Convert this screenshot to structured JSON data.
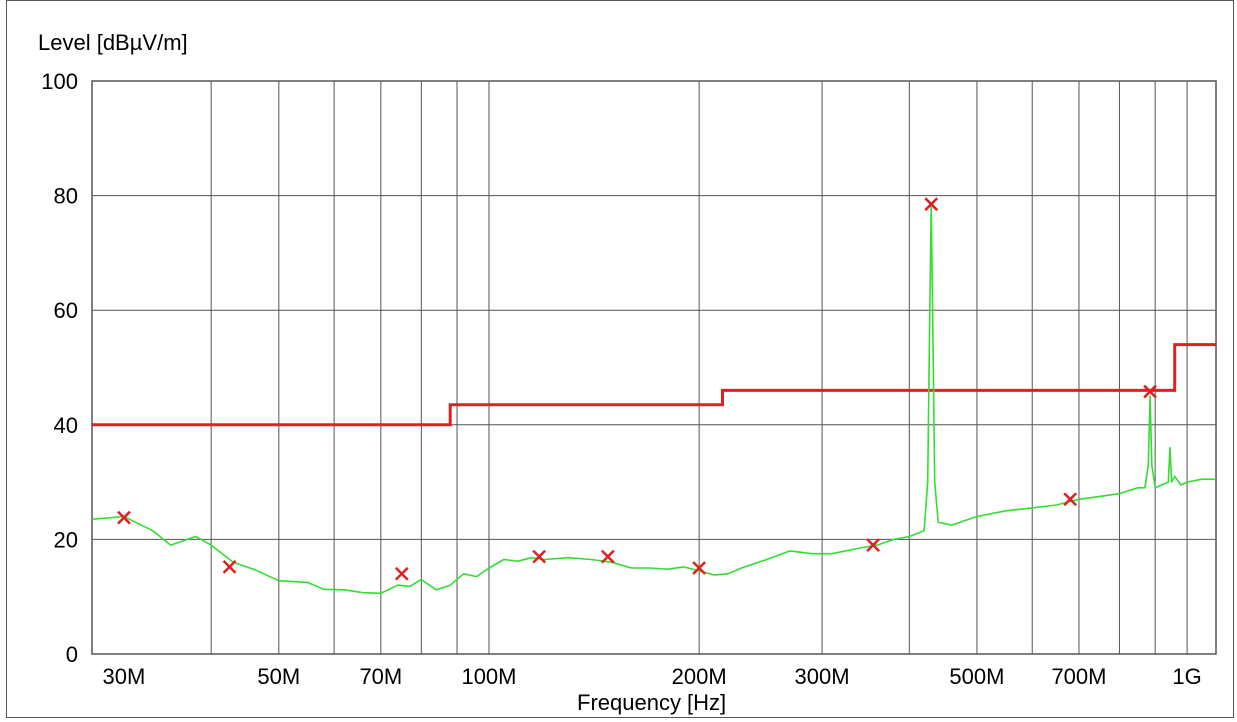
{
  "chart_data": {
    "type": "line",
    "ylabel": "Level [dBµV/m]",
    "xlabel": "Frequency [Hz]",
    "x_scale": "log",
    "xlim": [
      27000000,
      1100000000
    ],
    "ylim": [
      0,
      100
    ],
    "grid": true,
    "y_ticks": [
      {
        "value": 0,
        "label": "0"
      },
      {
        "value": 20,
        "label": "20"
      },
      {
        "value": 40,
        "label": "40"
      },
      {
        "value": 60,
        "label": "60"
      },
      {
        "value": 80,
        "label": "80"
      },
      {
        "value": 100,
        "label": "100"
      }
    ],
    "x_ticks": [
      {
        "value": 30000000,
        "label": "30M"
      },
      {
        "value": 50000000,
        "label": "50M"
      },
      {
        "value": 70000000,
        "label": "70M"
      },
      {
        "value": 100000000,
        "label": "100M"
      },
      {
        "value": 200000000,
        "label": "200M"
      },
      {
        "value": 300000000,
        "label": "300M"
      },
      {
        "value": 500000000,
        "label": "500M"
      },
      {
        "value": 700000000,
        "label": "700M"
      },
      {
        "value": 1000000000,
        "label": "1G"
      }
    ],
    "x_gridlines": [
      40000000,
      50000000,
      60000000,
      70000000,
      80000000,
      90000000,
      100000000,
      200000000,
      300000000,
      400000000,
      500000000,
      600000000,
      700000000,
      800000000,
      900000000,
      1000000000
    ],
    "colors": {
      "limit": "#e02020",
      "measurement": "#33dd33",
      "markers": "#e02020",
      "grid": "#555555"
    },
    "series": [
      {
        "kind": "limit-line",
        "x": [
          27000000,
          88000000,
          88000000,
          216000000,
          216000000,
          960000000,
          960000000,
          1100000000
        ],
        "y": [
          40,
          40,
          43.5,
          43.5,
          46,
          46,
          54,
          54
        ]
      },
      {
        "kind": "measurement-trace",
        "x": [
          27000000,
          30000000,
          33000000,
          35000000,
          38000000,
          40000000,
          43000000,
          46000000,
          50000000,
          55000000,
          58000000,
          62000000,
          66000000,
          70000000,
          74000000,
          77000000,
          80000000,
          84000000,
          88000000,
          92000000,
          96000000,
          100000000,
          105000000,
          110000000,
          115000000,
          120000000,
          130000000,
          140000000,
          150000000,
          160000000,
          170000000,
          180000000,
          190000000,
          200000000,
          210000000,
          220000000,
          230000000,
          250000000,
          270000000,
          290000000,
          310000000,
          340000000,
          360000000,
          380000000,
          400000000,
          420000000,
          425000000,
          428000000,
          430000000,
          432000000,
          435000000,
          440000000,
          460000000,
          500000000,
          550000000,
          600000000,
          650000000,
          700000000,
          750000000,
          800000000,
          850000000,
          870000000,
          880000000,
          885000000,
          890000000,
          900000000,
          920000000,
          940000000,
          945000000,
          950000000,
          960000000,
          980000000,
          1000000000,
          1050000000,
          1100000000
        ],
        "y": [
          23.5,
          24,
          21.5,
          19,
          20.5,
          19,
          16,
          14.8,
          12.8,
          12.5,
          11.3,
          11.2,
          10.7,
          10.6,
          12,
          11.8,
          13,
          11.2,
          12,
          14,
          13.5,
          15,
          16.5,
          16.2,
          16.8,
          16.5,
          16.8,
          16.5,
          16,
          15,
          15,
          14.8,
          15.2,
          14.5,
          13.8,
          14,
          15,
          16.5,
          18,
          17.5,
          17.5,
          18.5,
          19,
          20,
          20.5,
          21.5,
          30,
          60,
          78,
          60,
          30,
          23,
          22.5,
          24,
          25,
          25.5,
          26,
          27,
          27.5,
          28,
          29,
          29,
          33,
          45,
          33,
          29,
          29.5,
          30,
          36,
          30,
          31,
          29.5,
          30,
          30.5,
          30.5
        ]
      },
      {
        "kind": "peak-markers",
        "x": [
          30000000,
          42500000,
          75000000,
          118000000,
          148000000,
          200000000,
          355000000,
          430000000,
          680000000,
          885000000
        ],
        "y": [
          23.8,
          15.2,
          14,
          17,
          17,
          15,
          19,
          78.5,
          27,
          45.8
        ]
      }
    ]
  }
}
